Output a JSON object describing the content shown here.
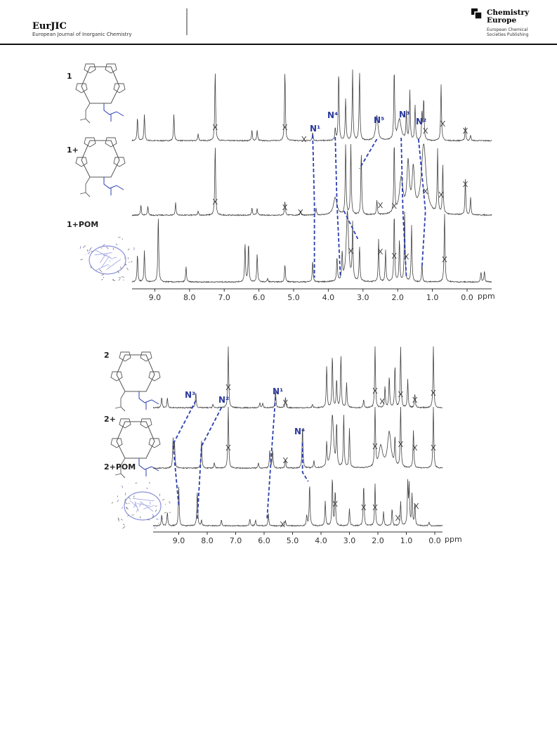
{
  "header": {
    "journal": "EurJIC",
    "journal_full": "European Journal of Inorganic Chemistry",
    "publisher_line1": "Chemistry",
    "publisher_line2": "Europe",
    "publisher_sub1": "European Chemical",
    "publisher_sub2": "Societies Publishing"
  },
  "figure1": {
    "traces": [
      "1",
      "1+",
      "1+POM"
    ],
    "peak_labels": [
      "N¹",
      "N⁴",
      "N⁵",
      "N³",
      "N²"
    ],
    "axis": {
      "ticks": [
        "9.0",
        "8.0",
        "7.0",
        "6.0",
        "5.0",
        "4.0",
        "3.0",
        "2.0",
        "1.0",
        "0.0"
      ],
      "unit": "ppm"
    }
  },
  "figure2": {
    "traces": [
      "2",
      "2+",
      "2+POM"
    ],
    "peak_labels": [
      "N³",
      "N²",
      "N¹",
      "N⁴"
    ],
    "axis": {
      "ticks": [
        "9.0",
        "8.0",
        "7.0",
        "6.0",
        "5.0",
        "4.0",
        "3.0",
        "2.0",
        "1.0",
        "0.0"
      ],
      "unit": "ppm"
    }
  }
}
